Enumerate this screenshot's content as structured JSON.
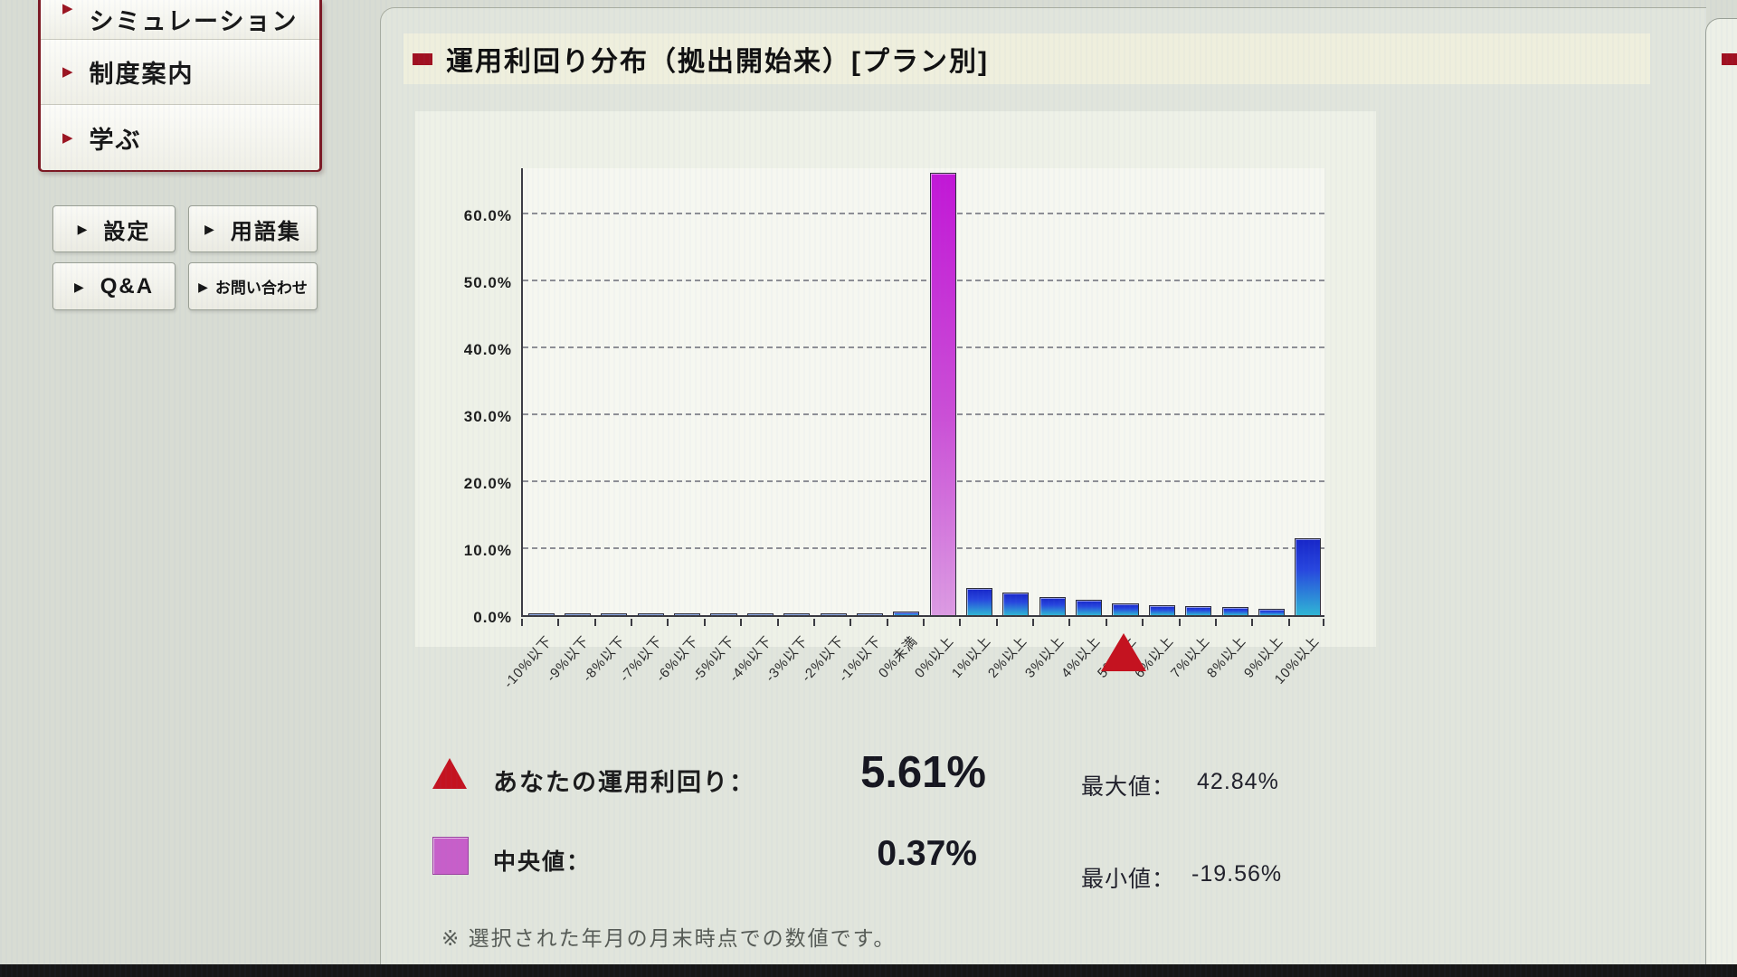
{
  "sidebar": {
    "menu_items": [
      {
        "label": "シミュレーション"
      },
      {
        "label": "制度案内"
      },
      {
        "label": "学ぶ"
      }
    ],
    "buttons": [
      {
        "label": "設定"
      },
      {
        "label": "用語集"
      },
      {
        "label": "Q&A"
      },
      {
        "label": "お問い合わせ"
      }
    ]
  },
  "header": {
    "title": "運用利回り分布（拠出開始来）[プラン別]"
  },
  "chart_data": {
    "type": "bar",
    "title": "運用利回り分布（拠出開始来）[プラン別]",
    "categories": [
      "-10%以下",
      "-9%以下",
      "-8%以下",
      "-7%以下",
      "-6%以下",
      "-5%以下",
      "-4%以下",
      "-3%以下",
      "-2%以下",
      "-1%以下",
      "0%未満",
      "0%以上",
      "1%以上",
      "2%以上",
      "3%以上",
      "4%以上",
      "5%以上",
      "6%以上",
      "7%以上",
      "8%以上",
      "9%以上",
      "10%以上"
    ],
    "values": [
      0.05,
      0.05,
      0.1,
      0.1,
      0.1,
      0.1,
      0.1,
      0.15,
      0.2,
      0.25,
      0.5,
      66.0,
      4.1,
      3.4,
      2.7,
      2.3,
      1.8,
      1.5,
      1.3,
      1.2,
      0.9,
      11.5
    ],
    "xlabel": "",
    "ylabel": "",
    "ylim": [
      0,
      67
    ],
    "y_ticks": [
      "0.0%",
      "10.0%",
      "20.0%",
      "30.0%",
      "40.0%",
      "50.0%",
      "60.0%"
    ],
    "grid": "dashed-horizontal",
    "median_category": "0%以上",
    "marker": {
      "label": "あなたの運用利回り",
      "value": "5.61%",
      "category": "5%以上"
    },
    "bar_color_default": "#2746de",
    "bar_color_median": "#c93fd2",
    "marker_color": "#c41320"
  },
  "legend": {
    "your_return_label": "あなたの運用利回り：",
    "your_return_value": "5.61%",
    "median_label": "中央値：",
    "median_value": "0.37%",
    "max_label": "最大値：",
    "max_value": "42.84%",
    "min_label": "最小値：",
    "min_value": "-19.56%"
  },
  "footnote": "※ 選択された年月の月末時点での数値です。",
  "colors": {
    "accent_red": "#a01020",
    "menu_border_red": "#7c1822",
    "title_bar_bg": "#efefdd"
  }
}
